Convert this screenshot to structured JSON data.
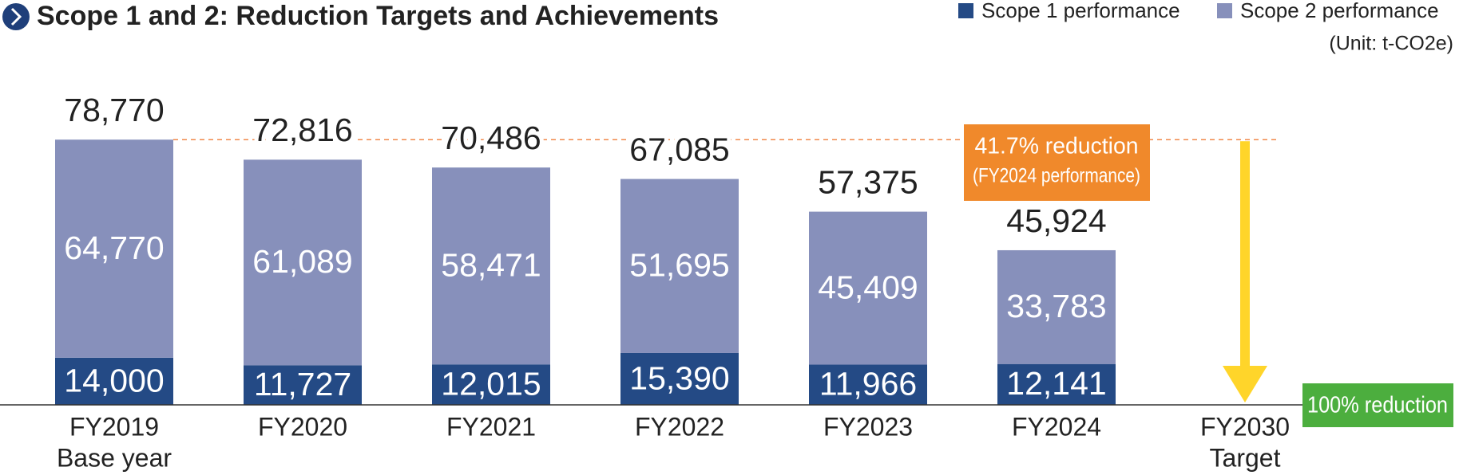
{
  "chart_data": {
    "type": "stacked_bar",
    "title": "Scope 1 and 2: Reduction Targets and Achievements",
    "unit": "(Unit: t-CO2e)",
    "categories": [
      "FY2019",
      "FY2020",
      "FY2021",
      "FY2022",
      "FY2023",
      "FY2024",
      "FY2030"
    ],
    "category_sublabels": [
      "Base year",
      null,
      null,
      null,
      null,
      null,
      "Target"
    ],
    "series": [
      {
        "name": "Scope 1 performance",
        "color": "#244a85",
        "values": [
          14000,
          11727,
          12015,
          15390,
          11966,
          12141,
          null
        ],
        "value_labels": [
          "14,000",
          "11,727",
          "12,015",
          "15,390",
          "11,966",
          "12,141",
          null
        ]
      },
      {
        "name": "Scope 2 performance",
        "color": "#8790bb",
        "values": [
          64770,
          61089,
          58471,
          51695,
          45409,
          33783,
          null
        ],
        "value_labels": [
          "64,770",
          "61,089",
          "58,471",
          "51,695",
          "45,409",
          "33,783",
          null
        ]
      }
    ],
    "totals": {
      "values": [
        78770,
        72816,
        70486,
        67085,
        57375,
        45924,
        null
      ],
      "value_labels": [
        "78,770",
        "72,816",
        "70,486",
        "67,085",
        "57,375",
        "45,924",
        null
      ]
    },
    "annotations": {
      "reduction_2024": [
        "41.7% reduction",
        "(FY2024 performance)"
      ],
      "target": "100% reduction"
    },
    "ylim": [
      0,
      80000
    ]
  }
}
